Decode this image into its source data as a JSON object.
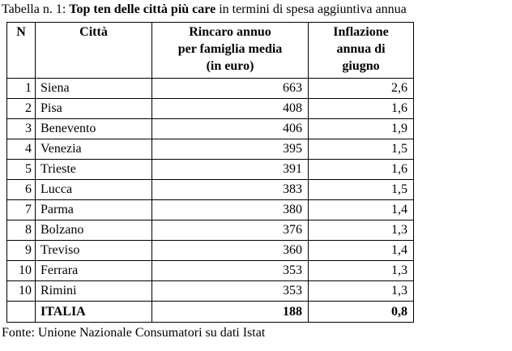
{
  "title": {
    "prefix": "Tabella n. 1: ",
    "bold": "Top ten delle città più care",
    "suffix": " in termini di spesa aggiuntiva annua"
  },
  "table": {
    "headers": {
      "rank": "N",
      "city": "Città",
      "rincaro": "Rincaro annuo\nper famiglia media\n(in euro)",
      "inflazione": "Inflazione\nannua di\ngiugno"
    },
    "rows": [
      {
        "rank": "1",
        "city": "Siena",
        "rincaro": "663",
        "inflazione": "2,6"
      },
      {
        "rank": "2",
        "city": "Pisa",
        "rincaro": "408",
        "inflazione": "1,6"
      },
      {
        "rank": "3",
        "city": "Benevento",
        "rincaro": "406",
        "inflazione": "1,9"
      },
      {
        "rank": "4",
        "city": "Venezia",
        "rincaro": "395",
        "inflazione": "1,5"
      },
      {
        "rank": "5",
        "city": "Trieste",
        "rincaro": "391",
        "inflazione": "1,6"
      },
      {
        "rank": "6",
        "city": "Lucca",
        "rincaro": "383",
        "inflazione": "1,5"
      },
      {
        "rank": "7",
        "city": "Parma",
        "rincaro": "380",
        "inflazione": "1,4"
      },
      {
        "rank": "8",
        "city": "Bolzano",
        "rincaro": "376",
        "inflazione": "1,3"
      },
      {
        "rank": "9",
        "city": "Treviso",
        "rincaro": "360",
        "inflazione": "1,4"
      },
      {
        "rank": "10",
        "city": "Ferrara",
        "rincaro": "353",
        "inflazione": "1,3"
      },
      {
        "rank": "10",
        "city": "Rimini",
        "rincaro": "353",
        "inflazione": "1,3"
      }
    ],
    "total_row": {
      "rank": "",
      "city": "ITALIA",
      "rincaro": "188",
      "inflazione": "0,8"
    }
  },
  "footer": {
    "text": "Fonte: Unione Nazionale Consumatori su dati Istat"
  }
}
